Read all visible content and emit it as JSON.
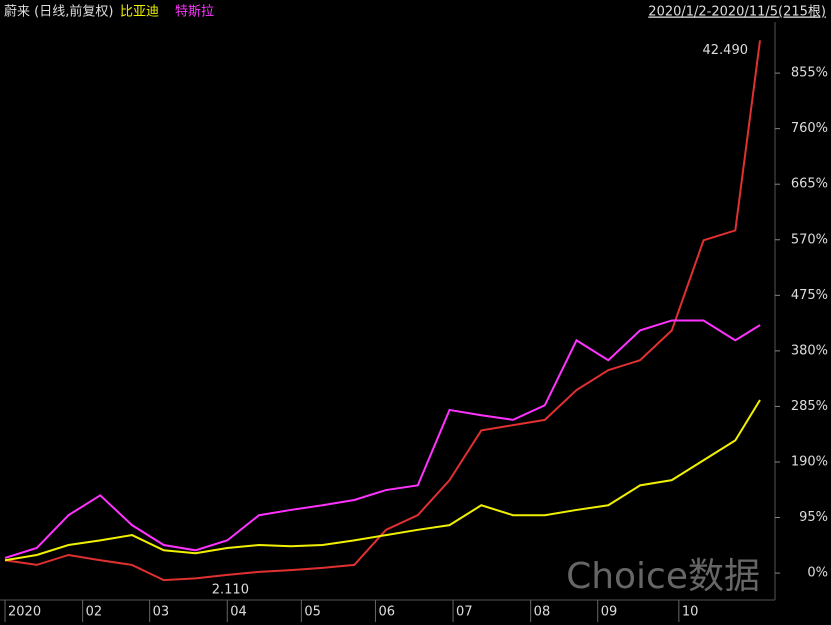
{
  "chart_data": {
    "type": "line",
    "title": "蔚来 (日线,前复权)",
    "range_label": "2020/1/2-2020/11/5(215根)",
    "watermark": "Choice数据",
    "annotations": [
      {
        "text": "42.490",
        "x": 214,
        "y": 911
      },
      {
        "text": "2.110",
        "x": 45,
        "y": -12
      }
    ],
    "x": [
      0,
      9,
      18,
      27,
      36,
      45,
      54,
      63,
      72,
      81,
      90,
      99,
      108,
      117,
      126,
      135,
      144,
      153,
      162,
      171,
      180,
      189,
      198,
      207,
      214
    ],
    "series": [
      {
        "name": "蔚来",
        "color": "#e03030",
        "values": [
          22,
          14,
          31,
          22,
          14,
          -12,
          -9,
          -3,
          2,
          5,
          9,
          14,
          74,
          99,
          159,
          244,
          253,
          262,
          313,
          347,
          364,
          415,
          569,
          586,
          911
        ]
      },
      {
        "name": "比亚迪",
        "color": "#f0f000",
        "values": [
          22,
          31,
          48,
          56,
          65,
          39,
          34,
          43,
          48,
          46,
          48,
          56,
          65,
          74,
          82,
          116,
          99,
          99,
          108,
          116,
          150,
          159,
          193,
          227,
          296
        ]
      },
      {
        "name": "特斯拉",
        "color": "#ff33ff",
        "values": [
          26,
          43,
          99,
          133,
          82,
          48,
          39,
          56,
          99,
          108,
          116,
          125,
          142,
          150,
          279,
          270,
          262,
          287,
          398,
          364,
          415,
          432,
          432,
          398,
          424
        ]
      }
    ],
    "xlim": [
      -1,
      216
    ],
    "xticks": [
      {
        "value": 0,
        "label": "2020"
      },
      {
        "value": 22,
        "label": "02"
      },
      {
        "value": 41,
        "label": "03"
      },
      {
        "value": 63,
        "label": "04"
      },
      {
        "value": 84,
        "label": "05"
      },
      {
        "value": 105,
        "label": "06"
      },
      {
        "value": 127,
        "label": "07"
      },
      {
        "value": 149,
        "label": "08"
      },
      {
        "value": 168,
        "label": "09"
      },
      {
        "value": 191,
        "label": "10"
      }
    ],
    "ylim": [
      -46,
      980
    ],
    "yticks": [
      {
        "value": 0,
        "label": "0%"
      },
      {
        "value": 95,
        "label": "95%"
      },
      {
        "value": 190,
        "label": "190%"
      },
      {
        "value": 285,
        "label": "285%"
      },
      {
        "value": 380,
        "label": "380%"
      },
      {
        "value": 475,
        "label": "475%"
      },
      {
        "value": 570,
        "label": "570%"
      },
      {
        "value": 665,
        "label": "665%"
      },
      {
        "value": 760,
        "label": "760%"
      },
      {
        "value": 855,
        "label": "855%"
      }
    ],
    "grid": false
  }
}
